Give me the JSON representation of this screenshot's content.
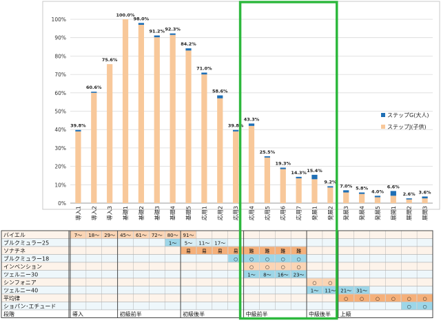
{
  "chart_data": {
    "type": "bar",
    "stacked": true,
    "categories": [
      "導入1",
      "導入2",
      "導入3",
      "基礎1",
      "基礎2",
      "基礎3",
      "基礎4",
      "基礎5",
      "応用1",
      "応用2",
      "応用3",
      "応用4",
      "応用5",
      "応用6",
      "応用7",
      "発展1",
      "発展2",
      "発展3",
      "発展4",
      "発展5",
      "展開1",
      "展開2",
      "展開3"
    ],
    "series": [
      {
        "name": "ステップJ(子供)",
        "color": "#f8c89a",
        "values": [
          39.0,
          60.0,
          75.6,
          100.0,
          97.0,
          90.2,
          91.5,
          83.0,
          70.0,
          57.0,
          39.0,
          42.0,
          24.8,
          18.5,
          13.5,
          13.0,
          8.5,
          5.8,
          5.0,
          3.2,
          4.0,
          2.0,
          2.6
        ]
      },
      {
        "name": "ステップG(大人)",
        "color": "#1f6fb5",
        "values": [
          0.8,
          0.6,
          0.0,
          0.0,
          1.0,
          1.0,
          0.8,
          1.2,
          1.0,
          1.6,
          0.8,
          1.3,
          0.7,
          0.8,
          0.8,
          2.4,
          0.7,
          1.2,
          0.8,
          0.8,
          2.6,
          0.6,
          1.0
        ]
      }
    ],
    "data_labels": [
      "39.8%",
      "60.6%",
      "75.6%",
      "100.0%",
      "98.0%",
      "91.2%",
      "92.3%",
      "84.2%",
      "71.0%",
      "58.6%",
      "39.8%",
      "43.3%",
      "25.5%",
      "19.3%",
      "14.3%",
      "15.4%",
      "9.2%",
      "7.0%",
      "5.8%",
      "4.0%",
      "6.6%",
      "2.6%",
      "3.6%"
    ],
    "y_ticks": [
      "0%",
      "10%",
      "20%",
      "30%",
      "40%",
      "50%",
      "60%",
      "70%",
      "80%",
      "90%",
      "100%"
    ],
    "ylim": [
      0,
      100
    ],
    "grid": true,
    "legend_position": "right",
    "highlight_color": "#2db83d"
  },
  "grid_table": {
    "rows": [
      {
        "name": "バイエル",
        "cells": [
          {
            "col": 0,
            "text": "7〜",
            "bg": "#fbd5b5"
          },
          {
            "col": 1,
            "text": "18〜",
            "bg": "#fbd5b5"
          },
          {
            "col": 2,
            "text": "29〜",
            "bg": "#fbd5b5"
          },
          {
            "col": 3,
            "text": "45〜",
            "bg": "#fbd5b5"
          },
          {
            "col": 4,
            "text": "61〜",
            "bg": "#fbd5b5"
          },
          {
            "col": 5,
            "text": "72〜",
            "bg": "#fbd5b5"
          },
          {
            "col": 6,
            "text": "80〜",
            "bg": "#fbd5b5"
          },
          {
            "col": 7,
            "text": "91〜",
            "bg": "#fbd5b5"
          }
        ]
      },
      {
        "name": "ブルクミュラー25",
        "cells": [
          {
            "col": 6,
            "text": "1〜",
            "bg": "#9dd6e8"
          },
          {
            "col": 7,
            "text": "5〜",
            "bg": "#daeef5"
          },
          {
            "col": 8,
            "text": "11〜",
            "bg": "#daeef5"
          },
          {
            "col": 9,
            "text": "17〜",
            "bg": "#daeef5"
          }
        ]
      },
      {
        "name": "ソナチネ",
        "cells": [
          {
            "col": 7,
            "text": "易",
            "bg": "#f5b07a"
          },
          {
            "col": 8,
            "text": "易",
            "bg": "#f5b07a"
          },
          {
            "col": 9,
            "text": "易",
            "bg": "#f5b07a"
          },
          {
            "col": 10,
            "text": "易",
            "bg": "#f5b07a"
          },
          {
            "col": 11,
            "text": "難",
            "bg": "#f5b07a"
          },
          {
            "col": 12,
            "text": "難",
            "bg": "#f5b07a"
          },
          {
            "col": 13,
            "text": "難",
            "bg": "#f5b07a"
          },
          {
            "col": 14,
            "text": "難",
            "bg": "#f5b07a"
          }
        ]
      },
      {
        "name": "ブルクミュラー18",
        "cells": [
          {
            "col": 10,
            "text": "○",
            "bg": "#9dd6e8"
          },
          {
            "col": 11,
            "text": "○",
            "bg": "#9dd6e8"
          },
          {
            "col": 12,
            "text": "○",
            "bg": "#9dd6e8"
          },
          {
            "col": 13,
            "text": "○",
            "bg": "#9dd6e8"
          },
          {
            "col": 14,
            "text": "○",
            "bg": "#9dd6e8"
          }
        ]
      },
      {
        "name": "インベンション",
        "cells": [
          {
            "col": 11,
            "text": "○",
            "bg": "#fbd5b5"
          },
          {
            "col": 12,
            "text": "○",
            "bg": "#fbd5b5"
          },
          {
            "col": 13,
            "text": "○",
            "bg": "#fbd5b5"
          },
          {
            "col": 14,
            "text": "○",
            "bg": "#fbd5b5"
          }
        ]
      },
      {
        "name": "ツェルニー30",
        "cells": [
          {
            "col": 11,
            "text": "1〜",
            "bg": "#9dd6e8"
          },
          {
            "col": 12,
            "text": "8〜",
            "bg": "#9dd6e8"
          },
          {
            "col": 13,
            "text": "16〜",
            "bg": "#9dd6e8"
          },
          {
            "col": 14,
            "text": "23〜",
            "bg": "#9dd6e8"
          }
        ]
      },
      {
        "name": "シンフォニア",
        "cells": [
          {
            "col": 15,
            "text": "○",
            "bg": "#fbd5b5"
          },
          {
            "col": 16,
            "text": "○",
            "bg": "#fbd5b5"
          }
        ]
      },
      {
        "name": "ツェルニー40",
        "cells": [
          {
            "col": 15,
            "text": "1〜",
            "bg": "#9dd6e8"
          },
          {
            "col": 16,
            "text": "11〜",
            "bg": "#9dd6e8"
          },
          {
            "col": 17,
            "text": "21〜",
            "bg": "#9dd6e8"
          },
          {
            "col": 18,
            "text": "31〜",
            "bg": "#9dd6e8"
          }
        ]
      },
      {
        "name": "平均律",
        "cells": [
          {
            "col": 17,
            "text": "○",
            "bg": "#f5b07a"
          },
          {
            "col": 18,
            "text": "○",
            "bg": "#f5b07a"
          },
          {
            "col": 19,
            "text": "○",
            "bg": "#f5b07a"
          },
          {
            "col": 20,
            "text": "○",
            "bg": "#f5b07a"
          },
          {
            "col": 21,
            "text": "○",
            "bg": "#f5b07a"
          },
          {
            "col": 22,
            "text": "○",
            "bg": "#f5b07a"
          }
        ]
      },
      {
        "name": "ショパン･エチュード",
        "cells": [
          {
            "col": 21,
            "text": "○",
            "bg": "#9dd6e8"
          },
          {
            "col": 22,
            "text": "○",
            "bg": "#9dd6e8"
          }
        ]
      }
    ],
    "stage_row": {
      "name": "段階",
      "groups": [
        {
          "label": "導入",
          "from": 0,
          "to": 2
        },
        {
          "label": "初級前半",
          "from": 3,
          "to": 6
        },
        {
          "label": "初級後半",
          "from": 7,
          "to": 10
        },
        {
          "label": "中級前半",
          "from": 11,
          "to": 14
        },
        {
          "label": "中級後半",
          "from": 15,
          "to": 16
        },
        {
          "label": "上級",
          "from": 17,
          "to": 22
        }
      ]
    }
  }
}
